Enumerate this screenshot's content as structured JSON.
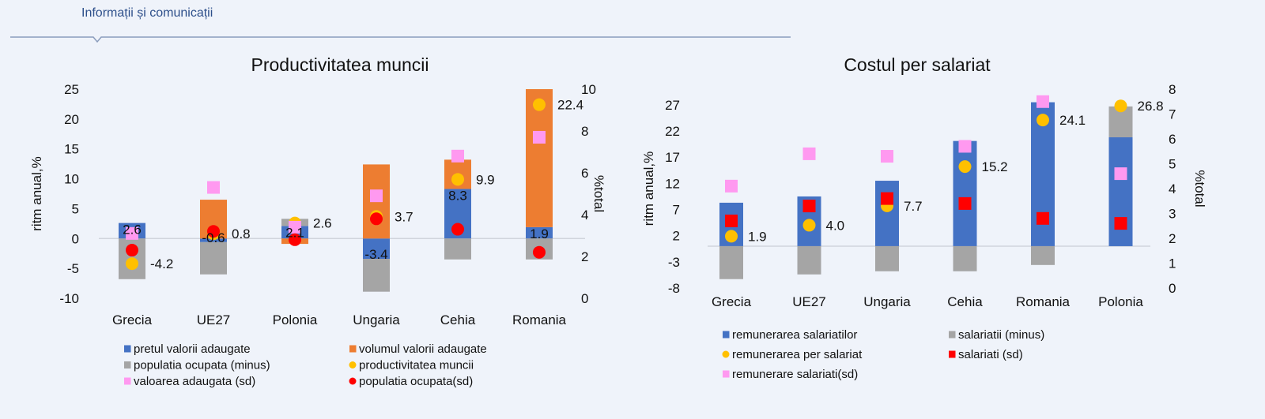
{
  "header": {
    "section_title": "Informații și comunicații"
  },
  "chart_data": [
    {
      "type": "bar",
      "stacked": true,
      "title": "Productivitatea muncii",
      "ylabel": "ritm anual,%",
      "y2label": "%total",
      "ylim": [
        -10,
        25
      ],
      "yticks": [
        25,
        20,
        15,
        10,
        5,
        0,
        -5,
        -10
      ],
      "y2lim": [
        0,
        10
      ],
      "y2ticks": [
        10,
        8,
        6,
        4,
        2,
        0
      ],
      "categories": [
        "Grecia",
        "UE27",
        "Polonia",
        "Ungaria",
        "Cehia",
        "Romania"
      ],
      "bars": [
        {
          "name": "pretul valorii adaugate",
          "color": "#4472c4",
          "values": [
            2.6,
            -0.6,
            2.1,
            -3.4,
            8.3,
            1.9
          ],
          "labels": true
        },
        {
          "name": "volumul valorii adaugate",
          "color": "#ed7d31",
          "values": [
            0,
            6.5,
            -0.9,
            12.4,
            4.9,
            23.1
          ]
        },
        {
          "name": "populatia ocupata (minus)",
          "color": "#a5a5a5",
          "values": [
            -6.8,
            -5.4,
            1.2,
            -5.5,
            -3.5,
            -3.5
          ]
        }
      ],
      "markers": [
        {
          "name": "productivitatea muncii",
          "color": "#ffc000",
          "shape": "circle",
          "axis": "left",
          "values": [
            -4.2,
            0.8,
            2.6,
            3.7,
            9.9,
            22.4
          ],
          "labels": true
        },
        {
          "name": "valoarea adaugata (sd)",
          "color": "#ff99f0",
          "shape": "square",
          "axis": "right",
          "values": [
            3.1,
            5.3,
            3.4,
            4.9,
            6.8,
            7.7
          ]
        },
        {
          "name": "populatia ocupata(sd)",
          "color": "#ff0000",
          "shape": "circle",
          "axis": "right",
          "values": [
            2.3,
            3.2,
            2.8,
            3.8,
            3.3,
            2.2
          ]
        }
      ],
      "legend_order": [
        0,
        1,
        2,
        3,
        4,
        5
      ],
      "legend": "bottom"
    },
    {
      "type": "bar",
      "stacked": true,
      "title": "Costul per salariat",
      "ylabel": "ritm anual,%",
      "y2label": "%total",
      "ylim": [
        -8,
        30
      ],
      "yticks": [
        27,
        22,
        17,
        12,
        7,
        2,
        -3,
        -8
      ],
      "y2lim": [
        0,
        8
      ],
      "y2ticks": [
        8,
        7,
        6,
        5,
        4,
        3,
        2,
        1,
        0
      ],
      "categories": [
        "Grecia",
        "UE27",
        "Ungaria",
        "Cehia",
        "Romania",
        "Polonia"
      ],
      "bars": [
        {
          "name": "remunerarea salariatilor",
          "color": "#4472c4",
          "values": [
            8.3,
            9.5,
            12.5,
            20.1,
            27.5,
            20.8
          ]
        },
        {
          "name": "salariatii (minus)",
          "color": "#a5a5a5",
          "values": [
            -6.3,
            -5.4,
            -4.8,
            -4.8,
            -3.6,
            5.9
          ]
        }
      ],
      "markers": [
        {
          "name": "remunerarea per salariat",
          "color": "#ffc000",
          "shape": "circle",
          "axis": "left",
          "values": [
            1.9,
            4.0,
            7.7,
            15.2,
            24.1,
            26.8
          ],
          "labels": true
        },
        {
          "name": "salariati (sd)",
          "color": "#ff0000",
          "shape": "square",
          "axis": "right",
          "values": [
            2.7,
            3.3,
            3.6,
            3.4,
            2.8,
            2.6
          ]
        },
        {
          "name": "remunerare salariati(sd)",
          "color": "#ff99f0",
          "shape": "square",
          "axis": "right",
          "values": [
            4.1,
            5.4,
            5.3,
            5.7,
            7.5,
            4.6
          ]
        }
      ],
      "legend_order": [
        0,
        1,
        2,
        3,
        4
      ],
      "legend": "bottom"
    }
  ]
}
